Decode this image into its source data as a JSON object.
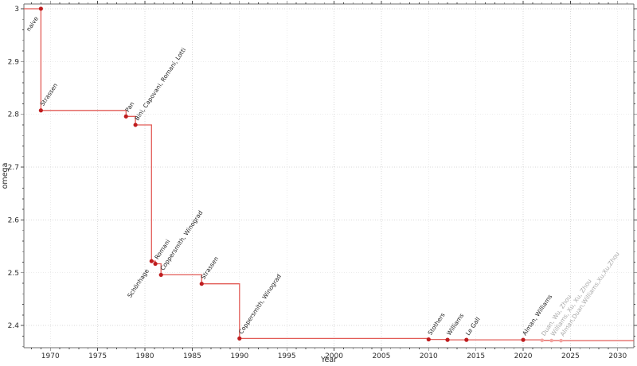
{
  "figure": {
    "title": "",
    "xlabel": "Year",
    "ylabel": "omega"
  },
  "chart_data": {
    "type": "line",
    "subtype": "step-post",
    "title": "",
    "xlabel": "Year",
    "ylabel": "omega",
    "xlim": [
      1967.2,
      2031.7
    ],
    "ylim": [
      2.358,
      3.009
    ],
    "xticks": [
      1970,
      1975,
      1980,
      1985,
      1990,
      1995,
      2000,
      2005,
      2010,
      2015,
      2020,
      2025,
      2030
    ],
    "yticks": [
      2.4,
      2.5,
      2.6,
      2.7,
      2.8,
      2.9,
      3
    ],
    "x_minor_step": 1,
    "y_minor_step": 0.02,
    "grid": "dotted-major",
    "legend": "none",
    "series": [
      {
        "name": "best known upper bound on omega",
        "points": [
          {
            "year": 1969,
            "omega": 3,
            "label": "naive",
            "label_side": "below"
          },
          {
            "year": 1969,
            "omega": 2.8074,
            "label": "Strassen"
          },
          {
            "year": 1978,
            "omega": 2.796,
            "label": "Pan"
          },
          {
            "year": 1979,
            "omega": 2.78,
            "label": "Bini, Capovani, Romani, Lotti"
          },
          {
            "year": 1981,
            "x_offset": -0.3,
            "omega": 2.522,
            "label": "Schönhage",
            "label_side": "below"
          },
          {
            "year": 1981,
            "x_offset": 0.1,
            "omega": 2.517,
            "label": "Romani"
          },
          {
            "year": 1982,
            "x_offset": -0.3,
            "omega": 2.496,
            "label": "Coppersmith, Winograd"
          },
          {
            "year": 1986,
            "omega": 2.479,
            "label": "Strassen"
          },
          {
            "year": 1990,
            "omega": 2.3755,
            "label": "Coppersmith, Winograd"
          },
          {
            "year": 2010,
            "omega": 2.3737,
            "label": "Stothers"
          },
          {
            "year": 2012,
            "omega": 2.3729,
            "label": "Williams"
          },
          {
            "year": 2014,
            "omega": 2.3728639,
            "label": "Le Gall"
          },
          {
            "year": 2020,
            "omega": 2.3728596,
            "label": "Alman, Williams"
          },
          {
            "year": 2022,
            "omega": 2.371866,
            "label": "Duan, Wu, Zhou",
            "muted": true
          },
          {
            "year": 2023,
            "omega": 2.371552,
            "label": "Williams, Xu, Xu, Zhou",
            "muted": true
          },
          {
            "year": 2024,
            "omega": 2.371339,
            "label": "Alman,Duan,Williams,Xu,Xu,Zhou",
            "muted": true
          }
        ]
      }
    ]
  },
  "style": {
    "line_color": "#e0534e",
    "marker_color": "#bf1d1f",
    "marker_muted_color": "#f2a4a1",
    "label_color": "#1f1f1f",
    "label_muted_color": "#a9a9a9",
    "grid_color": "#d9d9d9",
    "spine_color": "#6e6e6e",
    "tick_color": "#4a4a4a",
    "tick_label_color": "#2b2b2b",
    "background_color": "#ffffff"
  }
}
